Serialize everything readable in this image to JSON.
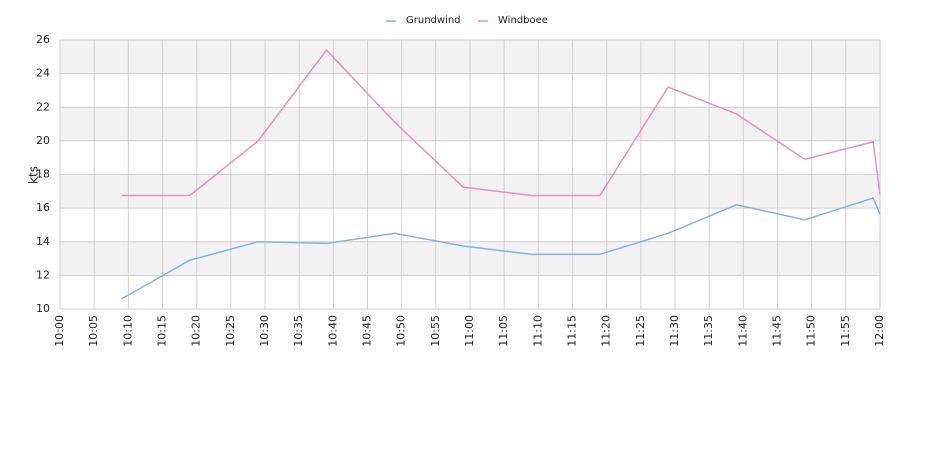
{
  "chart_data": {
    "type": "line",
    "y_label": "kts",
    "x": [
      "10:09",
      "10:19",
      "10:29",
      "10:39",
      "10:49",
      "10:59",
      "11:09",
      "11:19",
      "11:29",
      "11:39",
      "11:49",
      "11:59",
      "12:00"
    ],
    "series": [
      {
        "name": "Grundwind",
        "color": "#7cb5ec",
        "values": [
          10.6,
          12.9,
          14.0,
          13.9,
          14.5,
          13.75,
          13.25,
          13.25,
          14.5,
          16.2,
          15.3,
          16.6,
          15.65
        ]
      },
      {
        "name": "Windboee",
        "color": "#f08cc0",
        "values": [
          16.75,
          16.75,
          20.0,
          25.4,
          21.1,
          17.25,
          16.75,
          16.75,
          23.2,
          21.6,
          18.9,
          19.95,
          16.8
        ]
      }
    ],
    "xlim": [
      "10:00",
      "12:00"
    ],
    "xticks": [
      "10:00",
      "10:05",
      "10:10",
      "10:15",
      "10:20",
      "10:25",
      "10:30",
      "10:35",
      "10:40",
      "10:45",
      "10:50",
      "10:55",
      "11:00",
      "11:05",
      "11:10",
      "11:15",
      "11:20",
      "11:25",
      "11:30",
      "11:35",
      "11:40",
      "11:45",
      "11:50",
      "11:55",
      "12:00"
    ],
    "ylim": [
      10,
      26
    ],
    "yticks": [
      10,
      12,
      14,
      16,
      18,
      20,
      22,
      24,
      26
    ],
    "grid": true,
    "legend": "top"
  }
}
